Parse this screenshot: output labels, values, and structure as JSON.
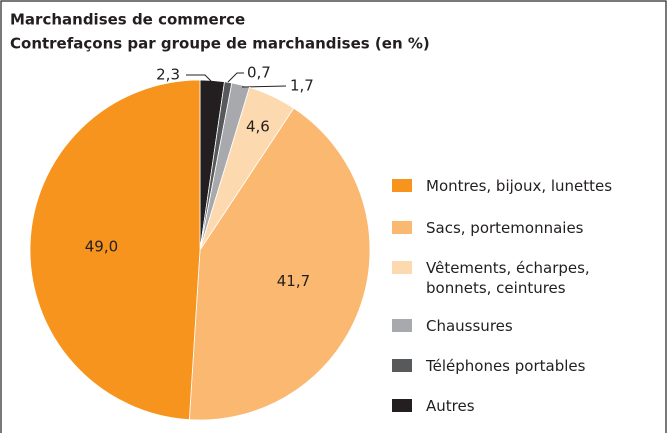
{
  "chart_data": {
    "type": "pie",
    "title": "Marchandises de commerce",
    "subtitle": "Contrefaçons par groupe de marchandises (en %)",
    "series": [
      {
        "name": "Montres, bijoux, lunettes",
        "color": "#f7941d",
        "values": [
          49.0
        ],
        "value_labels": [
          "49,0"
        ]
      },
      {
        "name": "Sacs, portemonnaies",
        "color": "#fbb870",
        "values": [
          41.7
        ],
        "value_labels": [
          "41,7"
        ]
      },
      {
        "name": "Vêtements, écharpes, bonnets, ceintures",
        "color": "#fdd9b0",
        "values": [
          4.6
        ],
        "value_labels": [
          "4,6"
        ]
      },
      {
        "name": "Chaussures",
        "color": "#a7a9ac",
        "values": [
          1.7
        ],
        "value_labels": [
          "1,7"
        ]
      },
      {
        "name": "Téléphones portables",
        "color": "#58595b",
        "values": [
          0.7
        ],
        "value_labels": [
          "0,7"
        ]
      },
      {
        "name": "Autres",
        "color": "#231f20",
        "values": [
          2.3
        ],
        "value_labels": [
          "2,3"
        ]
      }
    ]
  }
}
